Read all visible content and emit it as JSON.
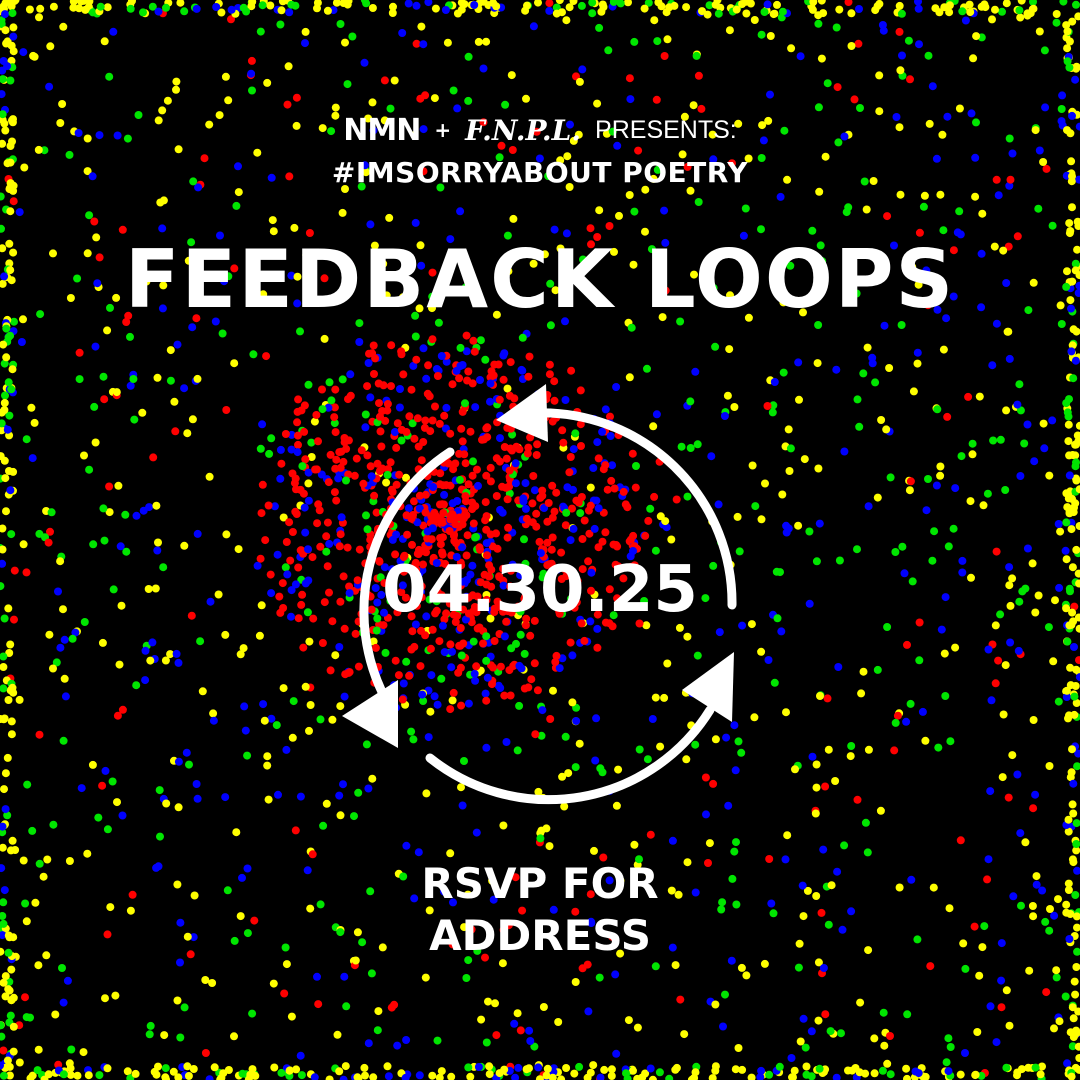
{
  "header": {
    "logo_left": "NMN",
    "plus": "+",
    "logo_right": "F.N.P.L.",
    "presents": "PRESENTS:"
  },
  "series_title": "#IMSORRYABOUT POETRY",
  "event_title": "FEEDBACK LOOPS",
  "date": "04.30.25",
  "rsvp": {
    "line1": "RSVP FOR",
    "line2": "ADDRESS"
  },
  "icon": "refresh-cycle-icon",
  "colors": {
    "background": "#000000",
    "text": "#ffffff",
    "dot_yellow": "#ffff00",
    "dot_green": "#00e600",
    "dot_blue": "#0000ff",
    "dot_red": "#ff0000"
  }
}
